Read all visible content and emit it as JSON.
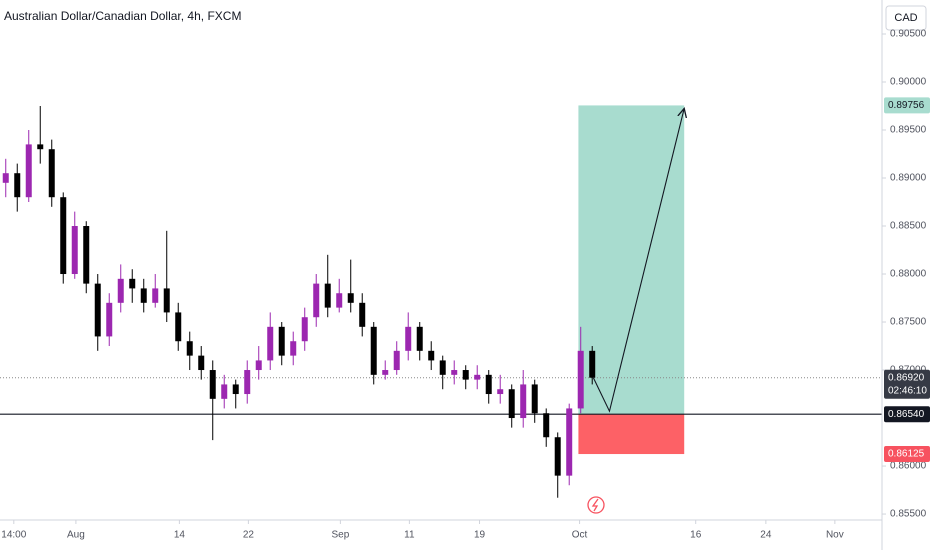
{
  "chart_data": {
    "type": "candlestick",
    "title": "Australian Dollar/Canadian Dollar, 4h, FXCM",
    "currency": "CAD",
    "up_color": "#9c27b0",
    "down_color": "#000000",
    "x": [
      0.5,
      1.5,
      2.5,
      3.5,
      4.5,
      5.5,
      6.5,
      7.5,
      8.5,
      9.5,
      10.5,
      11.5,
      12.5,
      13.5,
      14.5,
      15.5,
      16.5,
      17.5,
      18.5,
      19.5,
      20.5,
      21.5,
      22.5,
      23.5,
      24.5,
      25.5,
      26.5,
      27.5,
      28.5,
      29.5,
      30.5,
      31.5,
      32.5,
      33.5,
      34.5,
      35.5,
      36.5,
      37.5,
      38.5,
      39.5,
      40.5,
      41.5,
      42.5,
      43.5,
      44.5,
      45.5,
      46.5,
      47.5,
      48.5,
      49.5,
      50.5,
      51.5
    ],
    "open": [
      0.8895,
      0.8905,
      0.888,
      0.8935,
      0.893,
      0.888,
      0.88,
      0.885,
      0.879,
      0.8735,
      0.877,
      0.8795,
      0.8785,
      0.877,
      0.8785,
      0.876,
      0.873,
      0.8715,
      0.87,
      0.867,
      0.8685,
      0.8675,
      0.87,
      0.871,
      0.8745,
      0.8715,
      0.873,
      0.8755,
      0.879,
      0.8765,
      0.878,
      0.877,
      0.8745,
      0.8695,
      0.87,
      0.872,
      0.8745,
      0.872,
      0.871,
      0.8695,
      0.87,
      0.869,
      0.8695,
      0.8675,
      0.868,
      0.865,
      0.8685,
      0.8655,
      0.863,
      0.859,
      0.866,
      0.872
    ],
    "high": [
      0.892,
      0.8915,
      0.895,
      0.8975,
      0.894,
      0.8885,
      0.8865,
      0.8855,
      0.88,
      0.878,
      0.881,
      0.8805,
      0.8795,
      0.88,
      0.8845,
      0.877,
      0.874,
      0.8725,
      0.871,
      0.8695,
      0.869,
      0.871,
      0.8725,
      0.876,
      0.875,
      0.874,
      0.8765,
      0.88,
      0.882,
      0.8795,
      0.8815,
      0.878,
      0.875,
      0.871,
      0.873,
      0.876,
      0.875,
      0.873,
      0.8715,
      0.871,
      0.8705,
      0.8705,
      0.87,
      0.8695,
      0.8685,
      0.87,
      0.869,
      0.866,
      0.8635,
      0.8665,
      0.8745,
      0.8725
    ],
    "low": [
      0.888,
      0.8865,
      0.8875,
      0.8915,
      0.887,
      0.879,
      0.8795,
      0.878,
      0.872,
      0.8725,
      0.876,
      0.877,
      0.876,
      0.8765,
      0.875,
      0.872,
      0.87,
      0.869,
      0.8627,
      0.866,
      0.866,
      0.8665,
      0.869,
      0.87,
      0.8705,
      0.8705,
      0.872,
      0.8745,
      0.8755,
      0.876,
      0.876,
      0.8735,
      0.8685,
      0.869,
      0.8695,
      0.871,
      0.871,
      0.87,
      0.868,
      0.8685,
      0.868,
      0.868,
      0.8665,
      0.8665,
      0.864,
      0.864,
      0.8645,
      0.862,
      0.8567,
      0.858,
      0.8655,
      0.8685
    ],
    "close": [
      0.8905,
      0.888,
      0.8935,
      0.893,
      0.888,
      0.88,
      0.885,
      0.879,
      0.8735,
      0.877,
      0.8795,
      0.8785,
      0.877,
      0.8785,
      0.876,
      0.873,
      0.8715,
      0.87,
      0.867,
      0.8685,
      0.8675,
      0.87,
      0.871,
      0.8745,
      0.8715,
      0.873,
      0.8755,
      0.879,
      0.8765,
      0.878,
      0.877,
      0.8745,
      0.8695,
      0.87,
      0.872,
      0.8745,
      0.872,
      0.871,
      0.8695,
      0.87,
      0.869,
      0.8695,
      0.8675,
      0.868,
      0.865,
      0.8685,
      0.8655,
      0.863,
      0.859,
      0.866,
      0.872,
      0.8692
    ],
    "xlim": [
      0,
      76.7
    ],
    "xticks": [
      {
        "value": 1.2,
        "label": "14:00"
      },
      {
        "value": 6.6,
        "label": "Aug"
      },
      {
        "value": 15.6,
        "label": "14"
      },
      {
        "value": 21.6,
        "label": "22"
      },
      {
        "value": 29.6,
        "label": "Sep"
      },
      {
        "value": 35.6,
        "label": "11"
      },
      {
        "value": 41.7,
        "label": "19"
      },
      {
        "value": 50.4,
        "label": "Oct"
      },
      {
        "value": 60.5,
        "label": "16"
      },
      {
        "value": 66.6,
        "label": "24"
      },
      {
        "value": 72.6,
        "label": "Nov"
      }
    ],
    "ylim": [
      0.85438,
      0.90854
    ],
    "yticks": [
      {
        "value": 0.855,
        "label": "0.85500"
      },
      {
        "value": 0.86,
        "label": "0.86000"
      },
      {
        "value": 0.87,
        "label": "0.87000"
      },
      {
        "value": 0.875,
        "label": "0.87500"
      },
      {
        "value": 0.88,
        "label": "0.88000"
      },
      {
        "value": 0.885,
        "label": "0.88500"
      },
      {
        "value": 0.89,
        "label": "0.89000"
      },
      {
        "value": 0.895,
        "label": "0.89500"
      },
      {
        "value": 0.9,
        "label": "0.90000"
      },
      {
        "value": 0.905,
        "label": "0.90500"
      }
    ],
    "target": {
      "value": 0.89756,
      "label": "0.89756"
    },
    "last_price": {
      "value": 0.8692,
      "label": "0.86920"
    },
    "countdown": "02:46:10",
    "entry": {
      "value": 0.8654,
      "label": "0.86540"
    },
    "stop": {
      "value": 0.86125,
      "label": "0.86125"
    }
  }
}
